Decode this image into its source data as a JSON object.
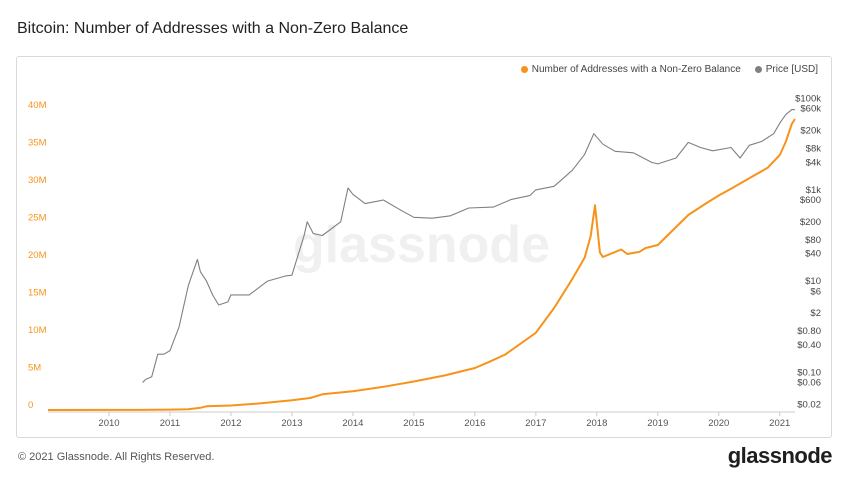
{
  "title": "Bitcoin: Number of Addresses with a Non-Zero Balance",
  "footer": "© 2021 Glassnode. All Rights Reserved.",
  "brand": "glassnode",
  "watermark": "glassnode",
  "legend": {
    "items": [
      {
        "label": "Number of Addresses with a Non-Zero Balance",
        "color": "#f7931a"
      },
      {
        "label": "Price [USD]",
        "color": "#808080"
      }
    ]
  },
  "chart_data": {
    "type": "line",
    "title": "Bitcoin: Number of Addresses with a Non-Zero Balance",
    "legend_position": "top-right",
    "grid": false,
    "x_ticks": [
      "2010",
      "2011",
      "2012",
      "2013",
      "2014",
      "2015",
      "2016",
      "2017",
      "2018",
      "2019",
      "2020",
      "2021"
    ],
    "x_range": [
      2009.0,
      2021.25
    ],
    "y_left": {
      "ticks": [
        0,
        5,
        10,
        15,
        20,
        25,
        30,
        35,
        40
      ],
      "tick_labels": [
        "0",
        "5M",
        "10M",
        "15M",
        "20M",
        "25M",
        "30M",
        "35M",
        "40M"
      ],
      "range": [
        0,
        42
      ],
      "color": "#f7931a"
    },
    "y_right": {
      "scale": "log",
      "tick_values": [
        100000,
        60000,
        20000,
        8000,
        4000,
        1000,
        600,
        200,
        80,
        40,
        10,
        6,
        2,
        0.8,
        0.4,
        0.1,
        0.06,
        0.02
      ],
      "tick_labels": [
        "$100k",
        "$60k",
        "$20k",
        "$8k",
        "$4k",
        "$1k",
        "$600",
        "$200",
        "$80",
        "$40",
        "$10",
        "$6",
        "$2",
        "$0.80",
        "$0.40",
        "$0.10",
        "$0.06",
        "$0.02"
      ],
      "range": [
        0.015,
        120000
      ]
    },
    "series": [
      {
        "name": "Number of Addresses with a Non-Zero Balance",
        "axis": "left",
        "color": "#f7931a",
        "unit": "M",
        "x": [
          2009.0,
          2010.0,
          2010.5,
          2011.0,
          2011.3,
          2011.5,
          2011.6,
          2012.0,
          2012.5,
          2013.0,
          2013.3,
          2013.5,
          2014.0,
          2014.5,
          2015.0,
          2015.5,
          2016.0,
          2016.2,
          2016.5,
          2017.0,
          2017.3,
          2017.6,
          2017.8,
          2017.9,
          2017.97,
          2018.05,
          2018.1,
          2018.4,
          2018.5,
          2018.7,
          2018.8,
          2019.0,
          2019.2,
          2019.5,
          2019.8,
          2020.0,
          2020.2,
          2020.5,
          2020.8,
          2021.0,
          2021.1,
          2021.15,
          2021.2,
          2021.25
        ],
        "y": [
          0.0,
          0.01,
          0.02,
          0.05,
          0.1,
          0.3,
          0.5,
          0.6,
          0.9,
          1.3,
          1.6,
          2.1,
          2.5,
          3.1,
          3.8,
          4.6,
          5.6,
          6.3,
          7.4,
          10.3,
          13.6,
          17.5,
          20.3,
          23.2,
          27.3,
          21.0,
          20.4,
          21.4,
          20.8,
          21.1,
          21.6,
          22.0,
          23.6,
          26.0,
          27.6,
          28.6,
          29.5,
          30.9,
          32.3,
          34.0,
          35.8,
          37.0,
          38.2,
          38.8
        ]
      },
      {
        "name": "Price [USD]",
        "axis": "right",
        "color": "#808080",
        "x": [
          2010.55,
          2010.6,
          2010.7,
          2010.8,
          2010.9,
          2011.0,
          2011.15,
          2011.3,
          2011.45,
          2011.5,
          2011.6,
          2011.7,
          2011.8,
          2011.95,
          2012.0,
          2012.3,
          2012.6,
          2012.9,
          2013.0,
          2013.2,
          2013.25,
          2013.35,
          2013.5,
          2013.8,
          2013.92,
          2014.0,
          2014.2,
          2014.5,
          2014.8,
          2015.0,
          2015.3,
          2015.6,
          2015.9,
          2016.3,
          2016.6,
          2016.9,
          2017.0,
          2017.3,
          2017.6,
          2017.8,
          2017.95,
          2018.1,
          2018.3,
          2018.6,
          2018.9,
          2019.0,
          2019.3,
          2019.5,
          2019.7,
          2019.9,
          2020.2,
          2020.35,
          2020.5,
          2020.7,
          2020.9,
          2021.0,
          2021.1,
          2021.2,
          2021.25
        ],
        "y": [
          0.06,
          0.07,
          0.08,
          0.25,
          0.25,
          0.3,
          1.0,
          8.0,
          30.0,
          16.0,
          10.0,
          5.0,
          3.0,
          3.5,
          5.0,
          5.0,
          10.0,
          13.0,
          13.5,
          100.0,
          200.0,
          110.0,
          100.0,
          200.0,
          1100.0,
          800.0,
          500.0,
          600.0,
          350.0,
          250.0,
          240.0,
          270.0,
          400.0,
          420.0,
          620.0,
          750.0,
          1000.0,
          1200.0,
          2700.0,
          6000.0,
          17000.0,
          10000.0,
          7000.0,
          6500.0,
          4000.0,
          3700.0,
          5000.0,
          11000.0,
          8500.0,
          7200.0,
          8500.0,
          5000.0,
          9500.0,
          11500.0,
          17000.0,
          29000.0,
          45000.0,
          58000.0,
          57000.0
        ]
      }
    ]
  }
}
